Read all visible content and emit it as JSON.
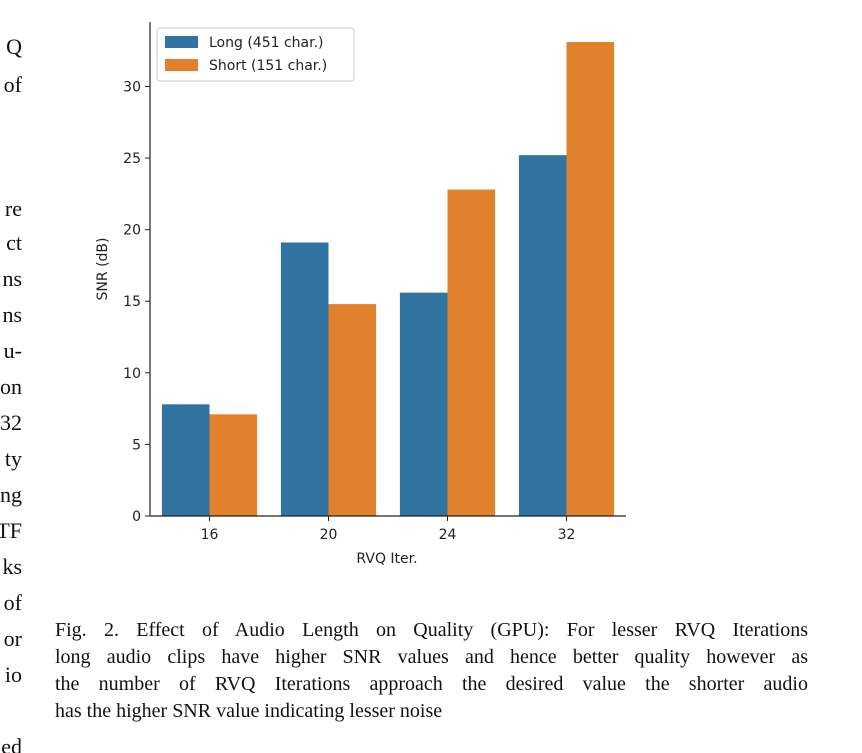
{
  "left_column_fragments": [
    "Q",
    "of",
    "re",
    "ct",
    "ns",
    "ns",
    "u-",
    "on",
    "32",
    "ty",
    "ng",
    "TF",
    "ks",
    "of",
    "or",
    "io",
    "ed"
  ],
  "chart_data": {
    "type": "bar",
    "categories": [
      "16",
      "20",
      "24",
      "32"
    ],
    "series": [
      {
        "name": "Long (451 char.)",
        "color": "#3274a1",
        "values": [
          7.8,
          19.1,
          15.6,
          25.2
        ]
      },
      {
        "name": "Short (151 char.)",
        "color": "#e1812c",
        "values": [
          7.1,
          14.8,
          22.8,
          33.1
        ]
      }
    ],
    "xlabel": "RVQ Iter.",
    "ylabel": "SNR (dB)",
    "ylim": [
      0,
      34.5
    ],
    "yticks": [
      "0",
      "5",
      "10",
      "15",
      "20",
      "25",
      "30"
    ],
    "grid": false,
    "legend": "top-left"
  },
  "caption": {
    "lines": [
      "Fig. 2.  Effect of Audio Length on Quality (GPU): For lesser RVQ Iterations",
      "long audio clips have higher SNR values and hence better quality however as",
      "the number of RVQ Iterations approach the desired value the shorter audio",
      "has the higher SNR value indicating lesser noise"
    ]
  }
}
